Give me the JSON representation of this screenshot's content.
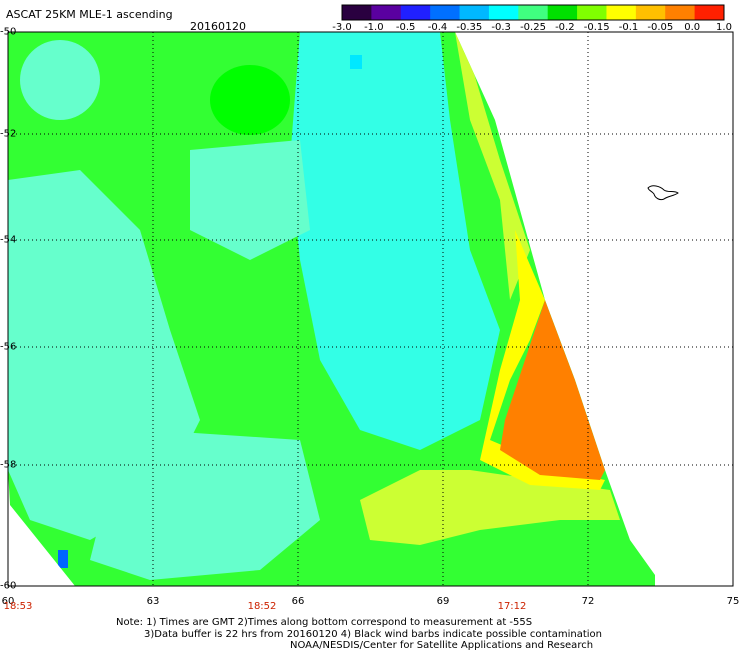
{
  "header": {
    "title": "ASCAT 25KM MLE-1 ascending",
    "date": "20160120"
  },
  "colorbar": {
    "labels": [
      "-3.0",
      "-1.0",
      "-0.5",
      "-0.4",
      "-0.35",
      "-0.3",
      "-0.25",
      "-0.2",
      "-0.15",
      "-0.1",
      "-0.05",
      "0.0",
      "1.0"
    ],
    "colors": [
      "#2a0040",
      "#5a00a0",
      "#2020ff",
      "#0070ff",
      "#00b8ff",
      "#00ffff",
      "#40ff80",
      "#00e000",
      "#80ff00",
      "#ffff00",
      "#ffc000",
      "#ff8000",
      "#ff2000"
    ]
  },
  "map": {
    "lat_labels": [
      "-50",
      "-52",
      "-54",
      "-56",
      "-58",
      "-60"
    ],
    "lon_labels": [
      "60",
      "63",
      "66",
      "69",
      "72",
      "75"
    ],
    "time_labels": [
      "18:53",
      "18:52",
      "17:12"
    ],
    "colors": {
      "cyan": "#33ffe6",
      "aqua": "#66ffcc",
      "green": "#33ff33",
      "lime": "#00ff00",
      "yellowgreen": "#ccff33",
      "yellow": "#ffff00",
      "orange": "#ff8000",
      "blue": "#0066ff"
    }
  },
  "notes": {
    "line1": "Note: 1) Times are GMT 2)Times along bottom correspond to measurement at -55S",
    "line2": "3)Data buffer is 22 hrs from 20160120 4) Black wind barbs indicate possible contamination",
    "line3": "NOAA/NESDIS/Center for Satellite Applications and Research"
  }
}
